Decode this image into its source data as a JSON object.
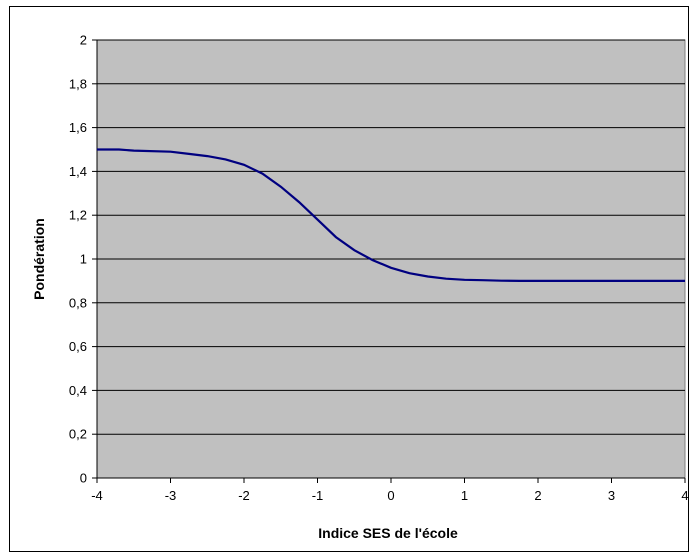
{
  "chart_data": {
    "type": "line",
    "title": "",
    "xlabel": "Indice SES de l'école",
    "ylabel": "Pondération",
    "xlim": [
      -4,
      4
    ],
    "ylim": [
      0,
      2
    ],
    "x_ticks": [
      -4,
      -3,
      -2,
      -1,
      0,
      1,
      2,
      3,
      4
    ],
    "y_ticks": [
      0,
      0.2,
      0.4,
      0.6,
      0.8,
      1,
      1.2,
      1.4,
      1.6,
      1.8,
      2
    ],
    "x_tick_labels": [
      "-4",
      "-3",
      "-2",
      "-1",
      "0",
      "1",
      "2",
      "3",
      "4"
    ],
    "y_tick_labels": [
      "0",
      "0,2",
      "0,4",
      "0,6",
      "0,8",
      "1",
      "1,2",
      "1,4",
      "1,6",
      "1,8",
      "2"
    ],
    "grid": "horizontal",
    "legend": "none",
    "plot_background": "#c0c0c0",
    "line_color": "#000080",
    "series": [
      {
        "x": [
          -4,
          -3.7,
          -3.5,
          -3,
          -2.75,
          -2.5,
          -2.25,
          -2,
          -1.75,
          -1.5,
          -1.25,
          -1,
          -0.75,
          -0.5,
          -0.25,
          0,
          0.25,
          0.5,
          0.75,
          1,
          1.25,
          1.5,
          1.75,
          2,
          2.5,
          3,
          3.5,
          4
        ],
        "y": [
          1.5,
          1.5,
          1.495,
          1.49,
          1.48,
          1.47,
          1.455,
          1.43,
          1.39,
          1.33,
          1.26,
          1.18,
          1.1,
          1.04,
          0.995,
          0.96,
          0.935,
          0.92,
          0.91,
          0.905,
          0.903,
          0.901,
          0.9,
          0.9,
          0.9,
          0.9,
          0.9,
          0.9
        ]
      }
    ]
  }
}
